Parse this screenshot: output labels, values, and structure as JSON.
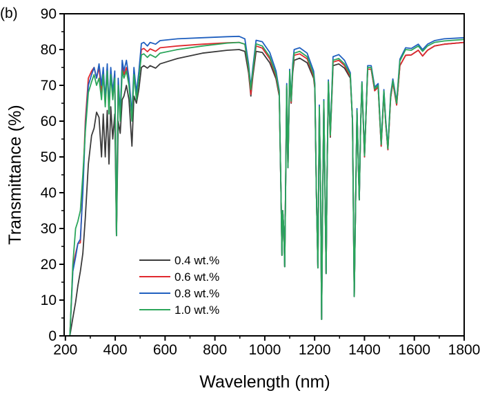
{
  "panel_label": "(b)",
  "chart_data": {
    "type": "line",
    "xlabel": "Wavelength (nm)",
    "ylabel": "Transmittance (%)",
    "xlim": [
      195,
      1800
    ],
    "ylim": [
      0,
      90
    ],
    "xticks": [
      200,
      400,
      600,
      800,
      1000,
      1200,
      1400,
      1600,
      1800
    ],
    "yticks": [
      0,
      10,
      20,
      30,
      40,
      50,
      60,
      70,
      80,
      90
    ],
    "grid": false,
    "legend_position": "bottom-left",
    "x": [
      218,
      230,
      241,
      250,
      260,
      270,
      280,
      292,
      305,
      315,
      325,
      335,
      345,
      352,
      360,
      368,
      375,
      382,
      390,
      398,
      405,
      412,
      420,
      428,
      435,
      445,
      455,
      467,
      475,
      485,
      495,
      505,
      515,
      529,
      540,
      562,
      580,
      650,
      750,
      850,
      897,
      920,
      935,
      944,
      952,
      965,
      990,
      1020,
      1045,
      1058,
      1065,
      1069,
      1072,
      1076,
      1080,
      1084,
      1088,
      1093,
      1100,
      1106,
      1112,
      1118,
      1140,
      1170,
      1196,
      1201,
      1207,
      1213,
      1219,
      1224,
      1228,
      1232,
      1237,
      1246,
      1250,
      1255,
      1263,
      1274,
      1297,
      1320,
      1343,
      1352,
      1359,
      1365,
      1370,
      1379,
      1385,
      1390,
      1400,
      1413,
      1427,
      1441,
      1455,
      1467,
      1478,
      1485,
      1494,
      1505,
      1514,
      1529,
      1542,
      1565,
      1588,
      1616,
      1633,
      1653,
      1681,
      1720,
      1800
    ],
    "series": [
      {
        "name": "0.4 wt.%",
        "color": "#3a3a3a",
        "values": [
          0,
          5,
          9.4,
          14,
          18,
          23,
          33,
          48,
          56,
          58,
          62.5,
          61,
          50,
          62,
          50,
          63,
          48,
          64,
          55,
          62,
          28,
          60,
          56.6,
          66,
          67,
          70,
          66,
          53,
          67,
          65,
          69,
          75,
          75.5,
          74.8,
          75.5,
          74.8,
          76,
          77.5,
          79,
          79.8,
          80,
          79.5,
          73.5,
          67,
          72.5,
          79.5,
          79.2,
          76.3,
          71.8,
          67,
          40,
          22.5,
          35,
          30,
          19.3,
          45,
          69,
          47,
          73,
          65,
          73.5,
          77,
          77.6,
          76.3,
          72,
          69,
          40,
          19,
          63.5,
          40,
          4.6,
          35,
          65,
          17.4,
          45,
          70.5,
          55.5,
          75.5,
          76,
          74.8,
          72,
          60,
          11,
          40,
          62.5,
          38,
          60,
          70,
          50,
          74.5,
          74.5,
          68.5,
          69.5,
          53,
          68,
          59.5,
          52,
          66.5,
          70.8,
          64.5,
          75.5,
          78.4,
          78.5,
          79.8,
          78.2,
          79.8,
          81,
          81.5,
          82
        ]
      },
      {
        "name": "0.6 wt.%",
        "color": "#e0282e",
        "values": [
          0,
          19,
          23,
          25.8,
          26,
          42,
          60,
          72,
          74,
          75,
          72,
          75,
          68,
          74,
          65,
          75,
          63,
          74,
          67,
          73,
          28,
          71,
          61,
          76,
          73,
          75,
          71,
          61,
          74,
          67,
          73,
          80,
          80.3,
          79.4,
          80.2,
          79.5,
          80.5,
          81,
          81.5,
          81.9,
          82,
          81.5,
          74.5,
          67.5,
          73.5,
          81,
          80.4,
          77.4,
          72.5,
          67.5,
          40,
          22.5,
          35,
          30,
          19.3,
          45,
          69.5,
          47,
          73.5,
          65.2,
          74.5,
          78.4,
          78.8,
          77.4,
          72.5,
          69.5,
          40,
          19,
          63.8,
          40,
          4.6,
          35,
          65.3,
          17.4,
          45,
          70.8,
          55.8,
          76.5,
          77,
          75.5,
          72.5,
          60,
          11,
          40,
          62.8,
          38,
          60,
          70.3,
          50,
          74.5,
          74.5,
          68.5,
          69.5,
          53,
          68,
          59.5,
          52,
          66.5,
          70.8,
          64.5,
          75.5,
          78.4,
          78.5,
          79.8,
          78.2,
          79.8,
          81,
          81.5,
          82
        ]
      },
      {
        "name": "0.8 wt.%",
        "color": "#1f5fbf",
        "values": [
          0,
          18,
          22,
          25.8,
          27,
          40,
          58,
          70,
          73,
          75,
          72,
          76,
          70,
          75,
          66,
          76,
          64,
          75,
          68,
          74,
          28,
          72,
          62,
          77,
          74,
          77,
          72,
          62,
          75,
          68,
          74,
          81.7,
          82,
          81,
          82,
          81.5,
          82.5,
          83,
          83.3,
          83.6,
          83.7,
          83,
          76,
          69.5,
          75,
          82.6,
          82.2,
          79.2,
          74,
          68.5,
          40,
          22.5,
          35,
          30,
          19.3,
          45,
          70.5,
          47,
          74.5,
          66,
          76,
          80,
          80.5,
          79,
          74,
          70.5,
          40,
          19,
          64.5,
          40,
          4.6,
          35,
          66,
          17.4,
          45,
          71.5,
          56.5,
          78,
          78.6,
          77,
          73.5,
          60,
          11,
          40,
          63.5,
          38,
          60,
          71,
          50.5,
          75.5,
          75.5,
          69.5,
          70.5,
          54,
          68.8,
          60.5,
          52.8,
          67.5,
          71.8,
          65.5,
          77.3,
          80.5,
          80.3,
          81.5,
          80,
          81.5,
          82.5,
          83,
          83.3
        ]
      },
      {
        "name": "1.0 wt.%",
        "color": "#2aa55a",
        "values": [
          0,
          20,
          30,
          32,
          35,
          45,
          57,
          68,
          71,
          73,
          70,
          72,
          66,
          73,
          64,
          74,
          62,
          73,
          66,
          72,
          28,
          70,
          60,
          74,
          72,
          74,
          70,
          60,
          73,
          66,
          72,
          78.5,
          78.8,
          77.8,
          78.6,
          77.8,
          79,
          80,
          81,
          81.8,
          82,
          81.5,
          75,
          68.8,
          74,
          81.6,
          81,
          78,
          73,
          68,
          40,
          22.5,
          35,
          30,
          19.3,
          45,
          70,
          47,
          74,
          65.6,
          75,
          79,
          79.5,
          78,
          73,
          70,
          40,
          19,
          64,
          40,
          4.6,
          35,
          65.6,
          17.4,
          45,
          71,
          56,
          77,
          77.5,
          76,
          73,
          60,
          11,
          40,
          63,
          38,
          60,
          70.8,
          50.3,
          75,
          75,
          69,
          70,
          53.5,
          68.4,
          60,
          52.3,
          67,
          71.3,
          65,
          76.8,
          80,
          79.8,
          81,
          79.5,
          81,
          82,
          82.4,
          82.8
        ]
      }
    ]
  }
}
